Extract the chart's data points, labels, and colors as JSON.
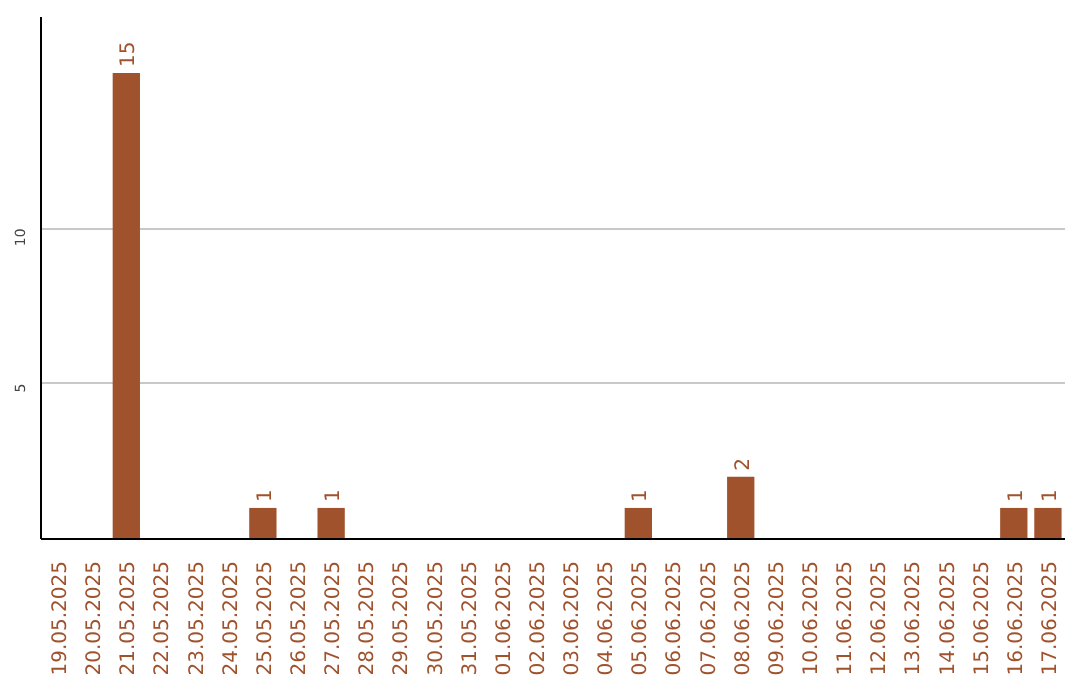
{
  "chart_data": {
    "type": "bar",
    "categories": [
      "19.05.2025",
      "20.05.2025",
      "21.05.2025",
      "22.05.2025",
      "23.05.2025",
      "24.05.2025",
      "25.05.2025",
      "26.05.2025",
      "27.05.2025",
      "28.05.2025",
      "29.05.2025",
      "30.05.2025",
      "31.05.2025",
      "01.06.2025",
      "02.06.2025",
      "03.06.2025",
      "04.06.2025",
      "05.06.2025",
      "06.06.2025",
      "07.06.2025",
      "08.06.2025",
      "09.06.2025",
      "10.06.2025",
      "11.06.2025",
      "12.06.2025",
      "13.06.2025",
      "14.06.2025",
      "15.06.2025",
      "16.06.2025",
      "17.06.2025"
    ],
    "values": [
      0,
      0,
      15,
      0,
      0,
      0,
      1,
      0,
      1,
      0,
      0,
      0,
      0,
      0,
      0,
      0,
      0,
      1,
      0,
      0,
      2,
      0,
      0,
      0,
      0,
      0,
      0,
      0,
      1,
      1
    ],
    "value_labels": [
      null,
      null,
      "15",
      null,
      null,
      null,
      "1",
      null,
      "1",
      null,
      null,
      null,
      null,
      null,
      null,
      null,
      null,
      "1",
      null,
      null,
      "2",
      null,
      null,
      null,
      null,
      null,
      null,
      null,
      "1",
      "1"
    ],
    "color": "#a0522d",
    "ylim": [
      0,
      16.8
    ],
    "yticks": [
      5,
      10
    ],
    "grid": "y"
  }
}
